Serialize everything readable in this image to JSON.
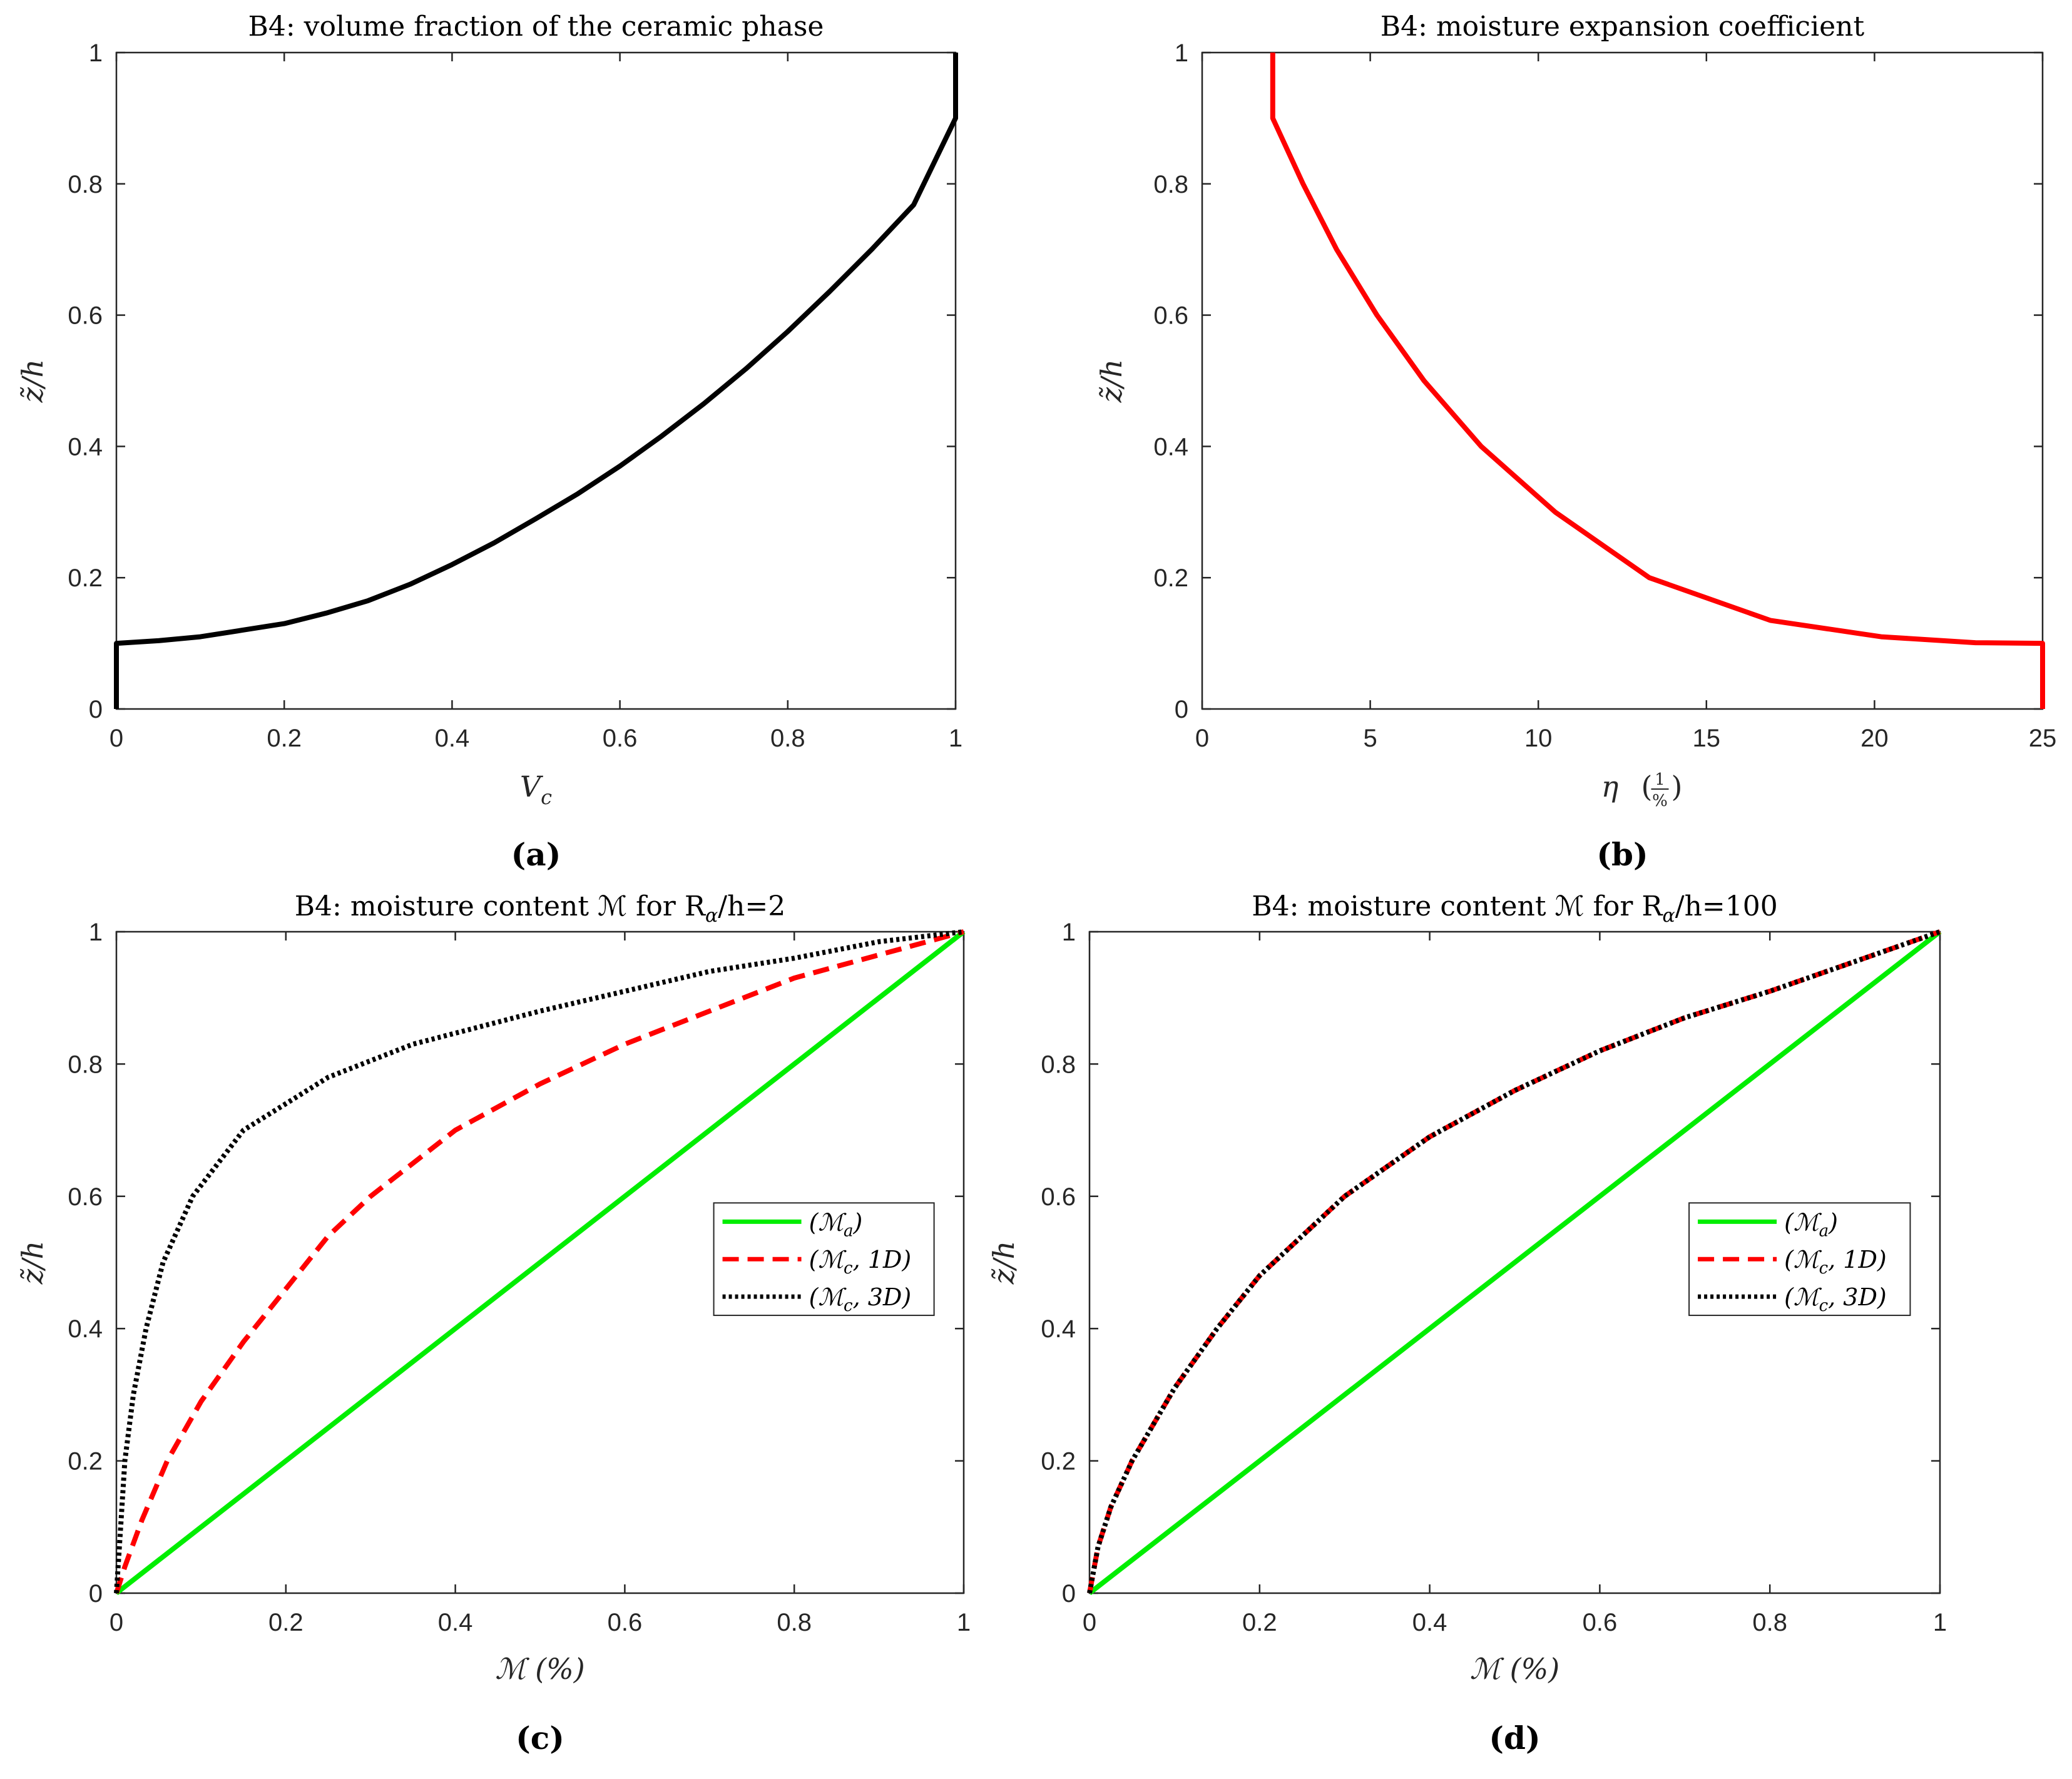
{
  "chart_data": [
    {
      "id": "a",
      "type": "line",
      "title": "B4:  volume fraction of the ceramic phase",
      "xlabel_base": "V",
      "xlabel_sub": "c",
      "ylabel": "z̃/h",
      "panel_label": "(a)",
      "xlim": [
        0,
        1
      ],
      "ylim": [
        0,
        1
      ],
      "xticks": [
        0,
        0.2,
        0.4,
        0.6,
        0.8,
        1
      ],
      "yticks": [
        0,
        0.2,
        0.4,
        0.6,
        0.8,
        1
      ],
      "xtick_labels": [
        "0",
        "0.2",
        "0.4",
        "0.6",
        "0.8",
        "1"
      ],
      "ytick_labels": [
        "0",
        "0.2",
        "0.4",
        "0.6",
        "0.8",
        "1"
      ],
      "series": [
        {
          "name": "V_c",
          "color": "#000000",
          "style": "solid",
          "points": [
            [
              0,
              0
            ],
            [
              0,
              0.1
            ],
            [
              0.05,
              0.104
            ],
            [
              0.1,
              0.11
            ],
            [
              0.15,
              0.12
            ],
            [
              0.2,
              0.13
            ],
            [
              0.25,
              0.146
            ],
            [
              0.3,
              0.165
            ],
            [
              0.35,
              0.19
            ],
            [
              0.4,
              0.22
            ],
            [
              0.45,
              0.253
            ],
            [
              0.5,
              0.29
            ],
            [
              0.55,
              0.328
            ],
            [
              0.6,
              0.37
            ],
            [
              0.65,
              0.416
            ],
            [
              0.7,
              0.465
            ],
            [
              0.75,
              0.518
            ],
            [
              0.8,
              0.575
            ],
            [
              0.85,
              0.636
            ],
            [
              0.9,
              0.7
            ],
            [
              0.95,
              0.768
            ],
            [
              1,
              0.9
            ],
            [
              1,
              1
            ]
          ]
        }
      ]
    },
    {
      "id": "b",
      "type": "line",
      "title": "B4:  moisture expansion coefficient",
      "xlabel_base": "η",
      "xlabel_frac_num": "1",
      "xlabel_frac_den": "%",
      "ylabel": "z̃/h",
      "panel_label": "(b)",
      "xlim": [
        0,
        25
      ],
      "ylim": [
        0,
        1
      ],
      "xticks": [
        0,
        5,
        10,
        15,
        20,
        25
      ],
      "yticks": [
        0,
        0.2,
        0.4,
        0.6,
        0.8,
        1
      ],
      "xtick_labels": [
        "0",
        "5",
        "10",
        "15",
        "20",
        "25"
      ],
      "ytick_labels": [
        "0",
        "0.2",
        "0.4",
        "0.6",
        "0.8",
        "1"
      ],
      "series": [
        {
          "name": "η",
          "color": "#ff0000",
          "style": "solid",
          "points": [
            [
              2.1,
              1
            ],
            [
              2.1,
              0.9
            ],
            [
              3,
              0.8
            ],
            [
              4,
              0.7
            ],
            [
              5.2,
              0.6
            ],
            [
              6.6,
              0.5
            ],
            [
              8.3,
              0.4
            ],
            [
              10.5,
              0.3
            ],
            [
              13.3,
              0.2
            ],
            [
              16.9,
              0.135
            ],
            [
              20.2,
              0.11
            ],
            [
              23,
              0.101
            ],
            [
              25,
              0.1
            ],
            [
              25,
              0
            ]
          ]
        }
      ]
    },
    {
      "id": "c",
      "type": "line",
      "title": "B4:  moisture content ℳ for R",
      "title_sub": "α",
      "title_tail": "/h=2",
      "xlabel": "ℳ (%)",
      "ylabel": "z̃/h",
      "panel_label": "(c)",
      "xlim": [
        0,
        1
      ],
      "ylim": [
        0,
        1
      ],
      "xticks": [
        0,
        0.2,
        0.4,
        0.6,
        0.8,
        1
      ],
      "yticks": [
        0,
        0.2,
        0.4,
        0.6,
        0.8,
        1
      ],
      "xtick_labels": [
        "0",
        "0.2",
        "0.4",
        "0.6",
        "0.8",
        "1"
      ],
      "ytick_labels": [
        "0",
        "0.2",
        "0.4",
        "0.6",
        "0.8",
        "1"
      ],
      "legend_position": "middle-right",
      "series": [
        {
          "name": "(ℳa)",
          "legend_base": "(ℳ",
          "legend_sub": "a",
          "legend_tail": ")",
          "color": "#00ee00",
          "style": "solid",
          "points": [
            [
              0,
              0
            ],
            [
              1,
              1
            ]
          ]
        },
        {
          "name": "(ℳc, 1D)",
          "legend_base": "(ℳ",
          "legend_sub": "c",
          "legend_tail": ", 1D)",
          "color": "#ff0000",
          "style": "dashed",
          "points": [
            [
              0,
              0
            ],
            [
              0.01,
              0.04
            ],
            [
              0.03,
              0.11
            ],
            [
              0.06,
              0.2
            ],
            [
              0.1,
              0.29
            ],
            [
              0.15,
              0.38
            ],
            [
              0.2,
              0.46
            ],
            [
              0.25,
              0.54
            ],
            [
              0.3,
              0.6
            ],
            [
              0.4,
              0.7
            ],
            [
              0.5,
              0.77
            ],
            [
              0.6,
              0.83
            ],
            [
              0.7,
              0.88
            ],
            [
              0.8,
              0.93
            ],
            [
              0.9,
              0.965
            ],
            [
              1,
              1
            ]
          ]
        },
        {
          "name": "(ℳc, 3D)",
          "legend_base": "(ℳ",
          "legend_sub": "c",
          "legend_tail": ", 3D)",
          "color": "#000000",
          "style": "dotted",
          "points": [
            [
              0,
              0
            ],
            [
              0.005,
              0.1
            ],
            [
              0.01,
              0.2
            ],
            [
              0.02,
              0.3
            ],
            [
              0.035,
              0.4
            ],
            [
              0.055,
              0.5
            ],
            [
              0.09,
              0.6
            ],
            [
              0.15,
              0.7
            ],
            [
              0.25,
              0.78
            ],
            [
              0.35,
              0.83
            ],
            [
              0.5,
              0.88
            ],
            [
              0.6,
              0.91
            ],
            [
              0.7,
              0.94
            ],
            [
              0.8,
              0.96
            ],
            [
              0.9,
              0.985
            ],
            [
              1,
              1
            ]
          ]
        }
      ]
    },
    {
      "id": "d",
      "type": "line",
      "title": "B4:  moisture content ℳ for R",
      "title_sub": "α",
      "title_tail": "/h=100",
      "xlabel": "ℳ (%)",
      "ylabel": "z̃/h",
      "panel_label": "(d)",
      "xlim": [
        0,
        1
      ],
      "ylim": [
        0,
        1
      ],
      "xticks": [
        0,
        0.2,
        0.4,
        0.6,
        0.8,
        1
      ],
      "yticks": [
        0,
        0.2,
        0.4,
        0.6,
        0.8,
        1
      ],
      "xtick_labels": [
        "0",
        "0.2",
        "0.4",
        "0.6",
        "0.8",
        "1"
      ],
      "ytick_labels": [
        "0",
        "0.2",
        "0.4",
        "0.6",
        "0.8",
        "1"
      ],
      "legend_position": "middle-right",
      "series": [
        {
          "name": "(ℳa)",
          "legend_base": "(ℳ",
          "legend_sub": "a",
          "legend_tail": ")",
          "color": "#00ee00",
          "style": "solid",
          "points": [
            [
              0,
              0
            ],
            [
              1,
              1
            ]
          ]
        },
        {
          "name": "(ℳc, 1D)",
          "legend_base": "(ℳ",
          "legend_sub": "c",
          "legend_tail": ", 1D)",
          "color": "#ff0000",
          "style": "dashed",
          "points": [
            [
              0,
              0
            ],
            [
              0.01,
              0.07
            ],
            [
              0.025,
              0.13
            ],
            [
              0.05,
              0.2
            ],
            [
              0.1,
              0.31
            ],
            [
              0.15,
              0.4
            ],
            [
              0.2,
              0.48
            ],
            [
              0.3,
              0.6
            ],
            [
              0.4,
              0.69
            ],
            [
              0.5,
              0.76
            ],
            [
              0.6,
              0.82
            ],
            [
              0.7,
              0.87
            ],
            [
              0.8,
              0.91
            ],
            [
              0.9,
              0.955
            ],
            [
              1,
              1
            ]
          ]
        },
        {
          "name": "(ℳc, 3D)",
          "legend_base": "(ℳ",
          "legend_sub": "c",
          "legend_tail": ", 3D)",
          "color": "#000000",
          "style": "dotted",
          "points": [
            [
              0,
              0
            ],
            [
              0.01,
              0.07
            ],
            [
              0.025,
              0.13
            ],
            [
              0.05,
              0.2
            ],
            [
              0.1,
              0.31
            ],
            [
              0.15,
              0.4
            ],
            [
              0.2,
              0.48
            ],
            [
              0.3,
              0.6
            ],
            [
              0.4,
              0.69
            ],
            [
              0.5,
              0.76
            ],
            [
              0.6,
              0.82
            ],
            [
              0.7,
              0.87
            ],
            [
              0.8,
              0.91
            ],
            [
              0.9,
              0.955
            ],
            [
              1,
              1
            ]
          ]
        }
      ]
    }
  ]
}
